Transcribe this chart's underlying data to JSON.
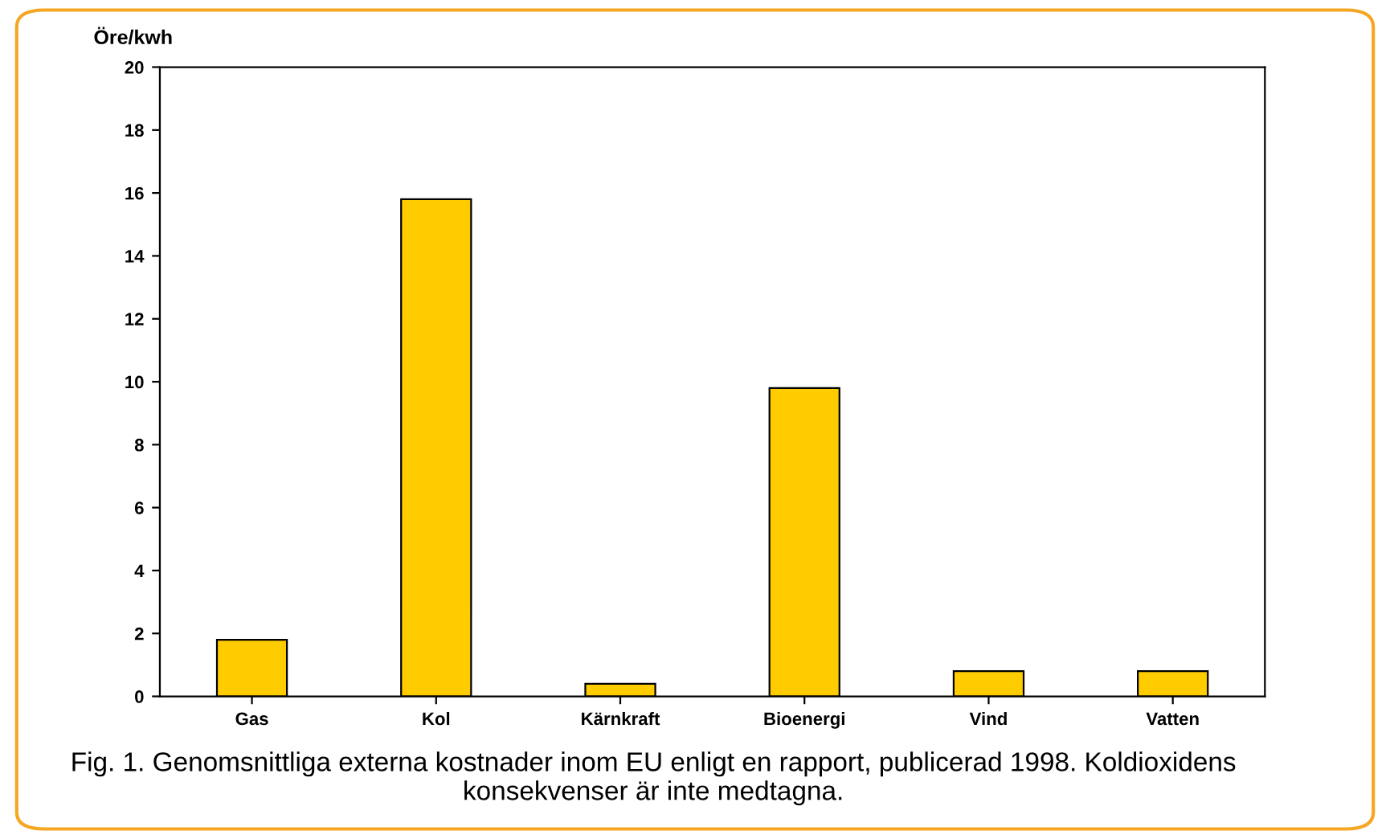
{
  "chart_data": {
    "type": "bar",
    "ylabel": "Öre/kwh",
    "categories": [
      "Gas",
      "Kol",
      "Kärnkraft",
      "Bioenergi",
      "Vind",
      "Vatten"
    ],
    "values": [
      1.8,
      15.8,
      0.4,
      9.8,
      0.8,
      0.8
    ],
    "color": "#ffcc00",
    "ylim": [
      0,
      20
    ],
    "yticks": [
      0,
      2,
      4,
      6,
      8,
      10,
      12,
      14,
      16,
      18,
      20
    ],
    "grid": false,
    "annotations": [
      "Fig. 1. Genomsnittliga externa kostnader inom EU enligt en rapport, publicerad 1998. Koldioxidens konsekvenser är inte medtagna."
    ]
  }
}
